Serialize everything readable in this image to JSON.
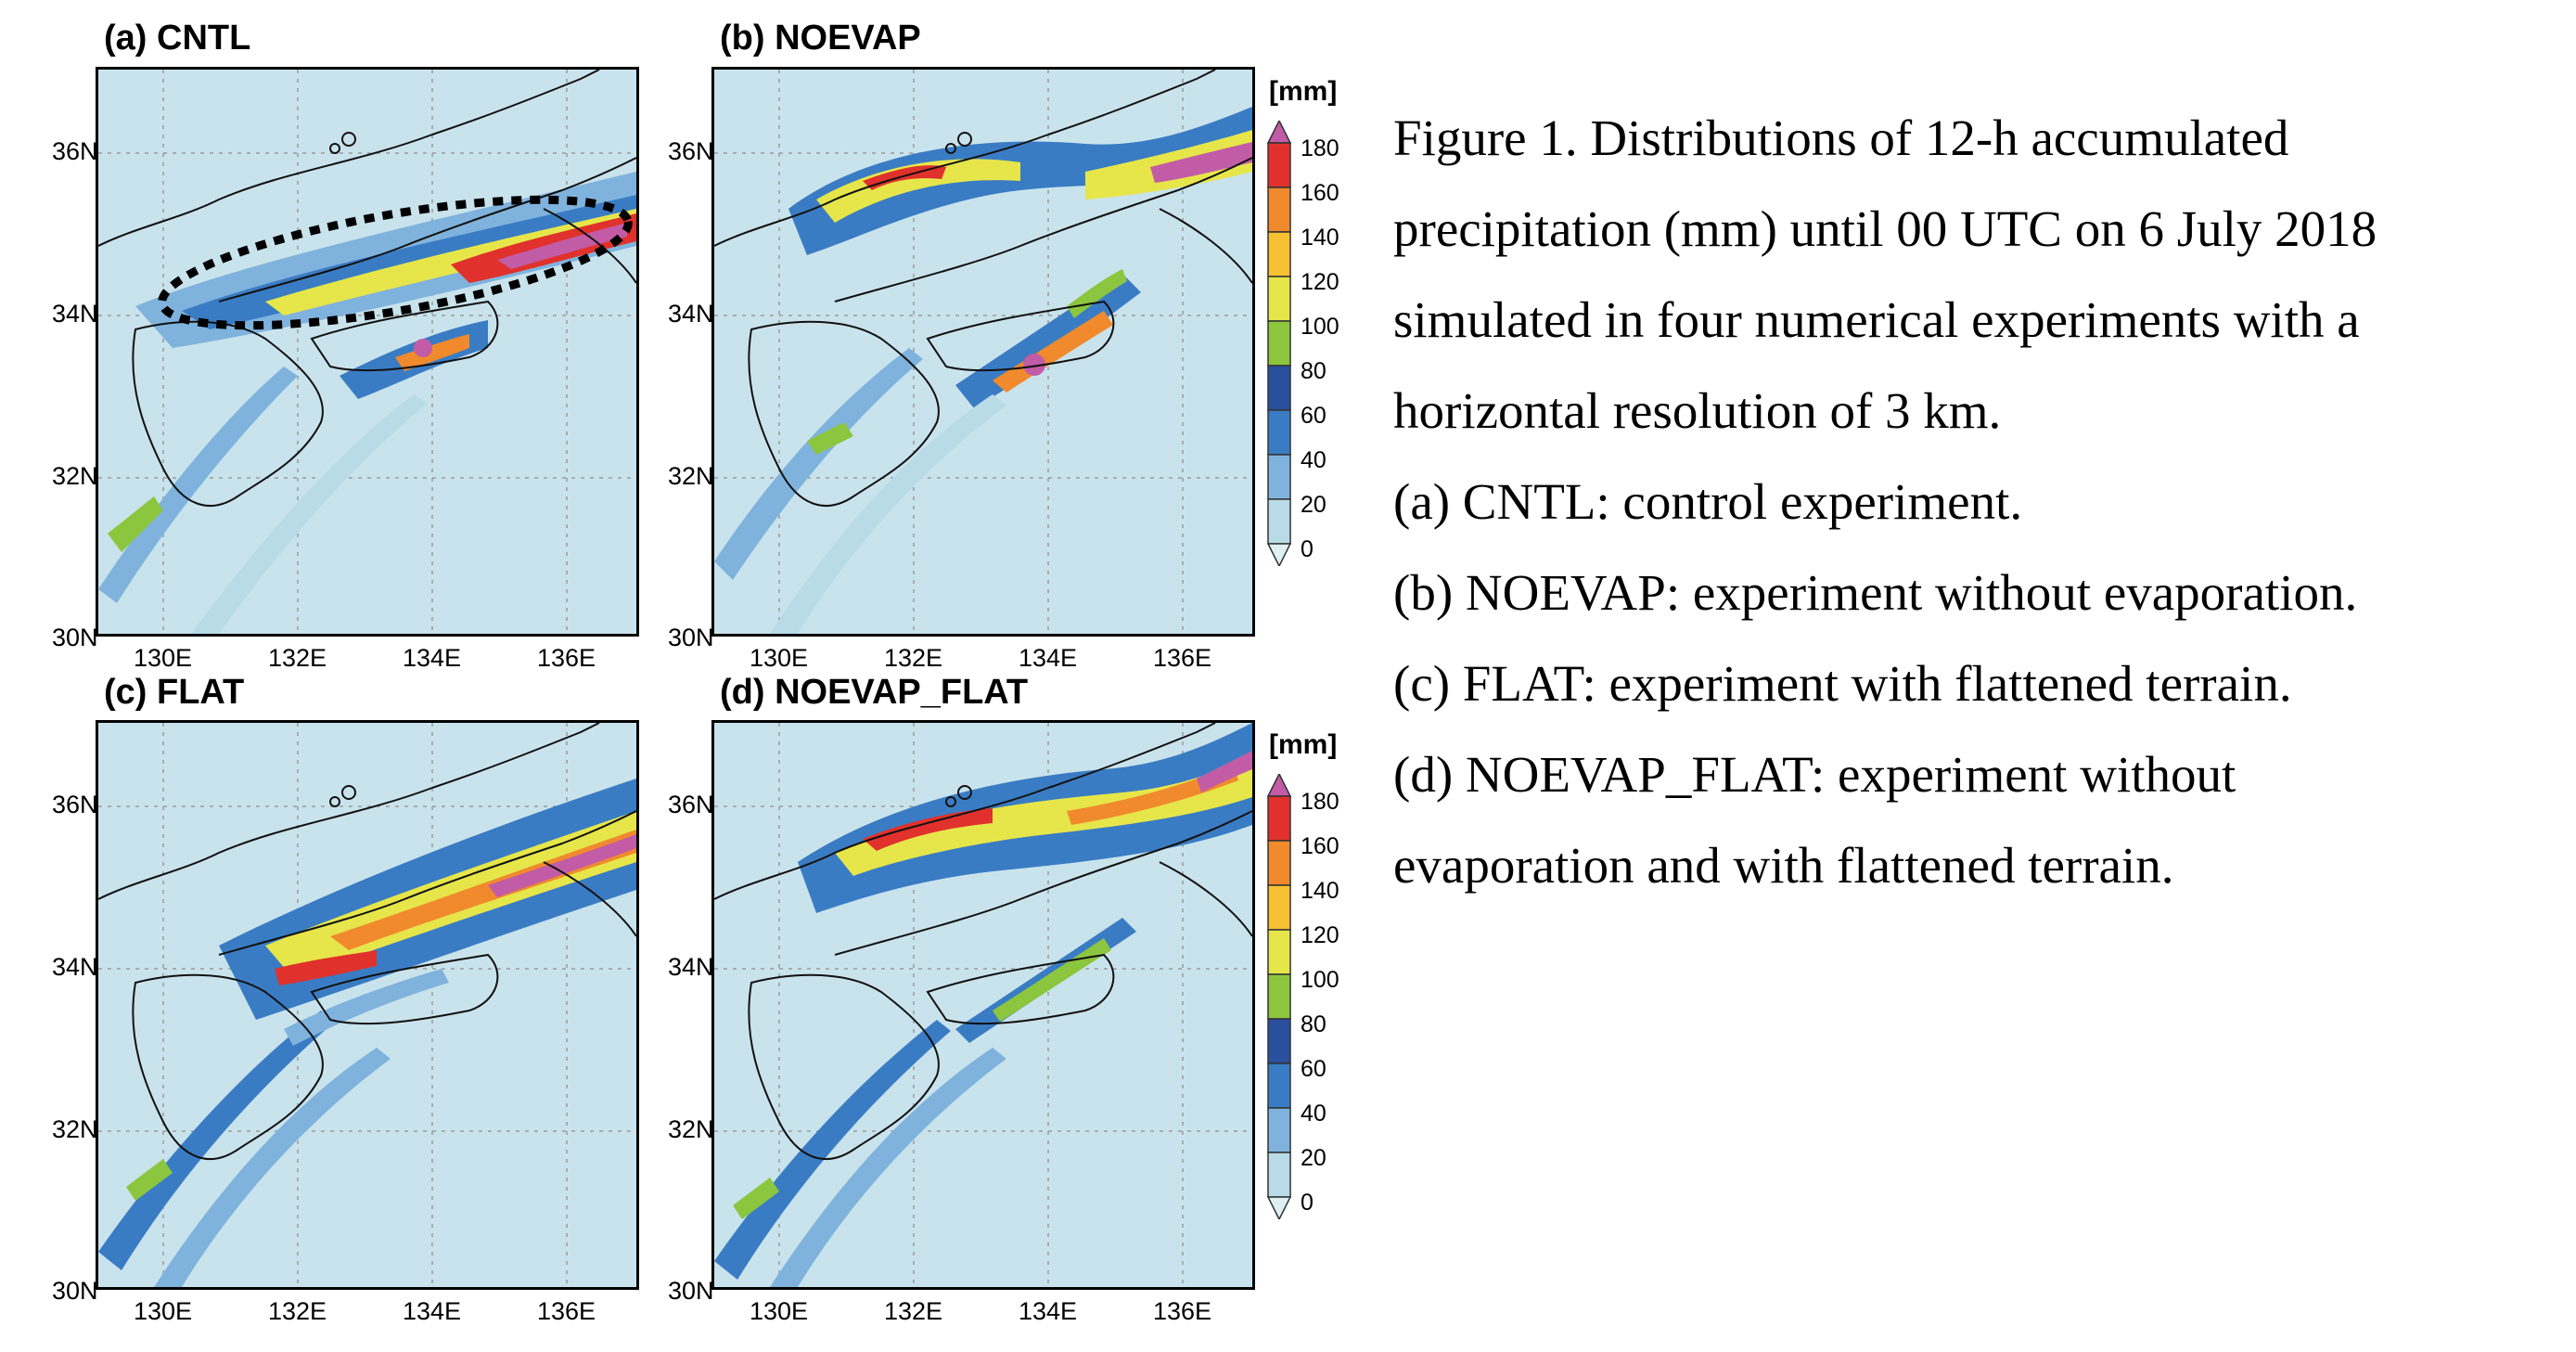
{
  "panels": [
    {
      "id": "a",
      "title": "(a) CNTL"
    },
    {
      "id": "b",
      "title": "(b) NOEVAP"
    },
    {
      "id": "c",
      "title": "(c) FLAT"
    },
    {
      "id": "d",
      "title": "(d) NOEVAP_FLAT"
    }
  ],
  "axes": {
    "lat_labels": [
      "36N",
      "34N",
      "32N",
      "30N"
    ],
    "lon_labels": [
      "130E",
      "132E",
      "134E",
      "136E"
    ]
  },
  "colorbar": {
    "unit": "[mm]",
    "levels": [
      "180",
      "160",
      "140",
      "120",
      "100",
      "80",
      "60",
      "40",
      "20",
      "0"
    ],
    "colors": [
      "#c25ca6",
      "#e0312c",
      "#f08a2c",
      "#f6c233",
      "#e6e64a",
      "#8cc63e",
      "#2a4f9d",
      "#3a7cc4",
      "#7fb3dd",
      "#b9dbe8",
      "#dff0f4"
    ]
  },
  "caption": {
    "lines": [
      "Figure 1. Distributions of 12-h accumulated",
      "precipitation (mm) until 00 UTC on 6 July 2018",
      "simulated in four numerical experiments with a",
      "horizontal resolution of 3 km.",
      "(a) CNTL: control experiment.",
      "(b) NOEVAP: experiment without evaporation.",
      "(c) FLAT: experiment with flattened terrain.",
      "(d) NOEVAP_FLAT: experiment without",
      "evaporation and with flattened terrain."
    ]
  }
}
